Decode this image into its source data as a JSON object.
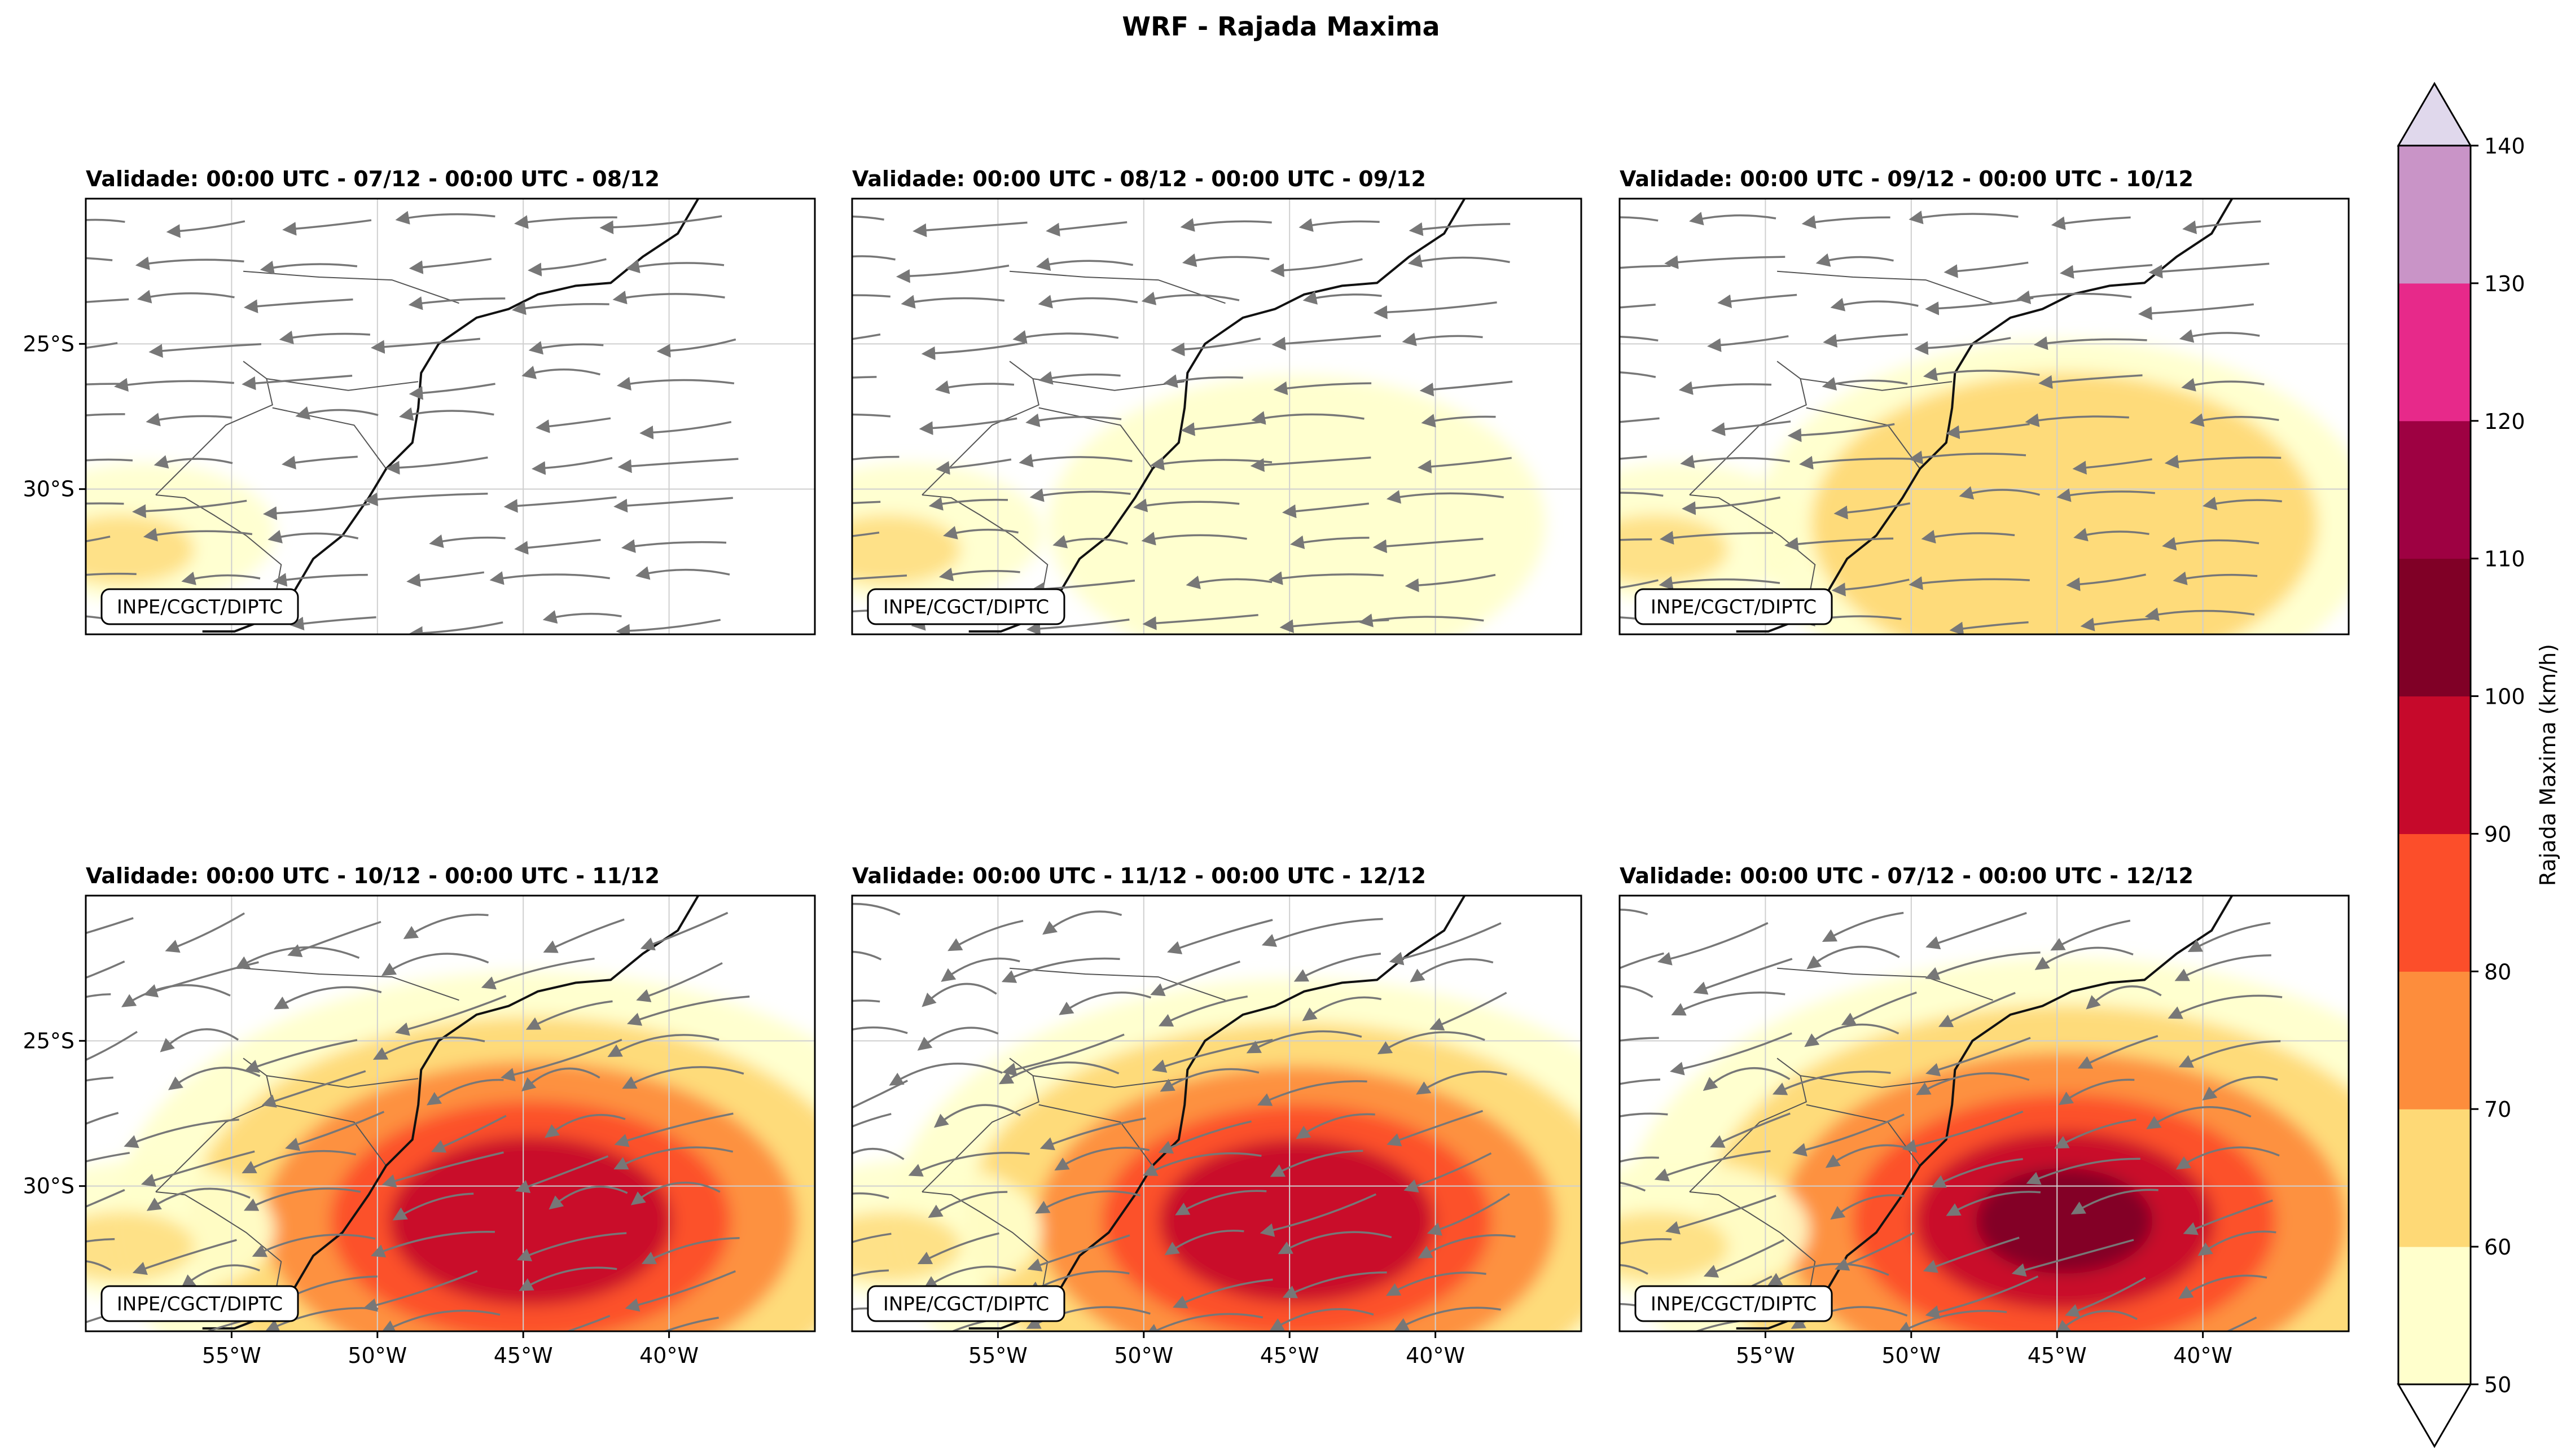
{
  "figure": {
    "title": "WRF - Rajada Maxima",
    "credit": "INPE/CGCT/DIPTC"
  },
  "chart_data": {
    "type": "heatmap",
    "variable": "Rajada Maxima (km/h)",
    "lon_ticks": [
      "55°W",
      "50°W",
      "45°W",
      "40°W"
    ],
    "lat_ticks": [
      "25°S",
      "30°S"
    ],
    "colorbar": {
      "label": "Rajada Maxima (km/h)",
      "levels": [
        50,
        60,
        70,
        80,
        90,
        100,
        110,
        120,
        130,
        140
      ],
      "colors": [
        "#ffffcc",
        "#fed976",
        "#fd8d3c",
        "#fc4e2a",
        "#c6092b",
        "#800026",
        "#9e0142",
        "#e7298a",
        "#c994c7",
        "#e0d8ec"
      ],
      "extend": "both",
      "under_color": "#ffffff",
      "over_color": "#e0d8ec"
    },
    "panels": [
      {
        "title": "Validade: 00:00 UTC - 07/12 - 00:00 UTC - 08/12",
        "intensity": 0.15,
        "shows_lon_ticks": false,
        "shows_lat_ticks": true
      },
      {
        "title": "Validade: 00:00 UTC - 08/12 - 00:00 UTC - 09/12",
        "intensity": 0.2,
        "shows_lon_ticks": false,
        "shows_lat_ticks": false
      },
      {
        "title": "Validade: 00:00 UTC - 09/12 - 00:00 UTC - 10/12",
        "intensity": 0.45,
        "shows_lon_ticks": false,
        "shows_lat_ticks": false
      },
      {
        "title": "Validade: 00:00 UTC - 10/12 - 00:00 UTC - 11/12",
        "intensity": 0.9,
        "shows_lon_ticks": true,
        "shows_lat_ticks": true
      },
      {
        "title": "Validade: 00:00 UTC - 11/12 - 00:00 UTC - 12/12",
        "intensity": 0.85,
        "shows_lon_ticks": true,
        "shows_lat_ticks": false
      },
      {
        "title": "Validade: 00:00 UTC - 07/12 - 00:00 UTC - 12/12",
        "intensity": 1.0,
        "shows_lon_ticks": true,
        "shows_lat_ticks": false
      }
    ]
  }
}
